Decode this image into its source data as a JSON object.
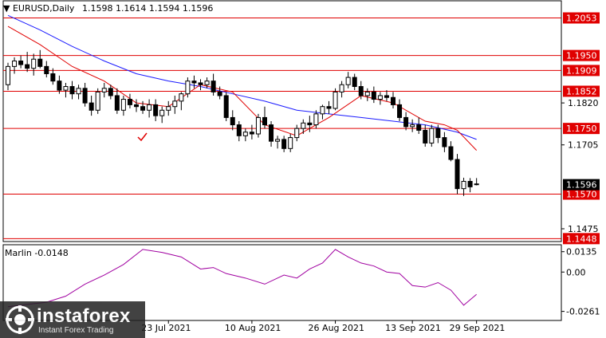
{
  "header": {
    "symbol_label": "EURUSD,Daily",
    "ohlc_label": "1.1598 1.1614 1.1594 1.1596",
    "menu_icon": "triangle-down-icon"
  },
  "indicator": {
    "label": "Marlin -0.0148",
    "axis_labels": [
      "0.0135",
      "0.00",
      "-0.0261"
    ]
  },
  "watermark": {
    "brand": "instaforex",
    "tagline": "Instant Forex Trading",
    "logo_icon": "instaforex-logo-icon"
  },
  "colors": {
    "candle_up": "#ffffff",
    "candle_down": "#000000",
    "ma_fast": "#e00000",
    "ma_slow": "#1a1aff",
    "level_line": "#e00000",
    "oscillator": "#a000a0",
    "current_price_box": "#000000"
  },
  "chart_data": {
    "type": "candlestick",
    "symbol": "EURUSD",
    "timeframe": "Daily",
    "current_price": 1.1596,
    "ylim": [
      1.144,
      1.21
    ],
    "price_axis_ticks": [
      1.182,
      1.1705,
      1.1475
    ],
    "x_tick_labels": [
      "23 Jul 2021",
      "10 Aug 2021",
      "26 Aug 2021",
      "13 Sep 2021",
      "29 Sep 2021"
    ],
    "horizontal_levels": [
      1.2053,
      1.195,
      1.1909,
      1.1852,
      1.175,
      1.157,
      1.1448
    ],
    "level_labels": [
      "1.2053",
      "1.1950",
      "1.1909",
      "1.1852",
      "1.1750",
      "1.1570",
      "1.1448",
      "1.1596"
    ],
    "annotation": "checkmark",
    "candles": [
      [
        1.187,
        1.193,
        1.1855,
        1.192
      ],
      [
        1.192,
        1.1945,
        1.19,
        1.1935
      ],
      [
        1.1935,
        1.195,
        1.1915,
        1.1925
      ],
      [
        1.1925,
        1.196,
        1.1905,
        1.1915
      ],
      [
        1.1915,
        1.1955,
        1.1895,
        1.194
      ],
      [
        1.194,
        1.1965,
        1.1915,
        1.192
      ],
      [
        1.192,
        1.1935,
        1.189,
        1.19
      ],
      [
        1.19,
        1.1915,
        1.187,
        1.188
      ],
      [
        1.188,
        1.1895,
        1.1845,
        1.1855
      ],
      [
        1.1855,
        1.1875,
        1.1835,
        1.1865
      ],
      [
        1.1865,
        1.188,
        1.183,
        1.1845
      ],
      [
        1.1845,
        1.187,
        1.183,
        1.186
      ],
      [
        1.186,
        1.1875,
        1.181,
        1.182
      ],
      [
        1.182,
        1.184,
        1.1785,
        1.18
      ],
      [
        1.18,
        1.186,
        1.179,
        1.185
      ],
      [
        1.185,
        1.1875,
        1.1835,
        1.186
      ],
      [
        1.186,
        1.187,
        1.183,
        1.184
      ],
      [
        1.184,
        1.186,
        1.179,
        1.18
      ],
      [
        1.18,
        1.184,
        1.1785,
        1.183
      ],
      [
        1.183,
        1.1845,
        1.1805,
        1.1815
      ],
      [
        1.1815,
        1.183,
        1.1795,
        1.181
      ],
      [
        1.181,
        1.1825,
        1.179,
        1.18
      ],
      [
        1.18,
        1.183,
        1.178,
        1.1815
      ],
      [
        1.1815,
        1.183,
        1.177,
        1.1785
      ],
      [
        1.1785,
        1.181,
        1.1765,
        1.18
      ],
      [
        1.18,
        1.1825,
        1.1785,
        1.181
      ],
      [
        1.181,
        1.184,
        1.179,
        1.1825
      ],
      [
        1.1825,
        1.185,
        1.18,
        1.1845
      ],
      [
        1.1845,
        1.189,
        1.1835,
        1.188
      ],
      [
        1.188,
        1.1895,
        1.186,
        1.1875
      ],
      [
        1.1875,
        1.1885,
        1.1855,
        1.187
      ],
      [
        1.187,
        1.189,
        1.186,
        1.188
      ],
      [
        1.188,
        1.19,
        1.184,
        1.185
      ],
      [
        1.185,
        1.1865,
        1.183,
        1.184
      ],
      [
        1.184,
        1.185,
        1.177,
        1.178
      ],
      [
        1.178,
        1.18,
        1.1745,
        1.176
      ],
      [
        1.176,
        1.177,
        1.1715,
        1.173
      ],
      [
        1.173,
        1.175,
        1.1715,
        1.174
      ],
      [
        1.174,
        1.176,
        1.172,
        1.1735
      ],
      [
        1.1735,
        1.179,
        1.1725,
        1.178
      ],
      [
        1.178,
        1.181,
        1.175,
        1.176
      ],
      [
        1.176,
        1.177,
        1.17,
        1.1715
      ],
      [
        1.1715,
        1.173,
        1.1695,
        1.172
      ],
      [
        1.172,
        1.173,
        1.1685,
        1.1695
      ],
      [
        1.1695,
        1.1735,
        1.1685,
        1.1725
      ],
      [
        1.1725,
        1.176,
        1.1715,
        1.175
      ],
      [
        1.175,
        1.1775,
        1.1735,
        1.1765
      ],
      [
        1.1765,
        1.1785,
        1.174,
        1.176
      ],
      [
        1.176,
        1.18,
        1.175,
        1.179
      ],
      [
        1.179,
        1.1815,
        1.1775,
        1.181
      ],
      [
        1.181,
        1.1825,
        1.179,
        1.1805
      ],
      [
        1.1805,
        1.186,
        1.18,
        1.185
      ],
      [
        1.185,
        1.188,
        1.1835,
        1.187
      ],
      [
        1.187,
        1.1905,
        1.186,
        1.189
      ],
      [
        1.189,
        1.19,
        1.1855,
        1.1865
      ],
      [
        1.1865,
        1.188,
        1.183,
        1.184
      ],
      [
        1.184,
        1.186,
        1.1825,
        1.185
      ],
      [
        1.185,
        1.1865,
        1.182,
        1.183
      ],
      [
        1.183,
        1.185,
        1.1815,
        1.184
      ],
      [
        1.184,
        1.1855,
        1.1825,
        1.1835
      ],
      [
        1.1835,
        1.185,
        1.1805,
        1.1815
      ],
      [
        1.1815,
        1.183,
        1.177,
        1.178
      ],
      [
        1.178,
        1.1795,
        1.1745,
        1.1755
      ],
      [
        1.1755,
        1.1775,
        1.174,
        1.176
      ],
      [
        1.176,
        1.178,
        1.1735,
        1.1745
      ],
      [
        1.1745,
        1.176,
        1.17,
        1.171
      ],
      [
        1.171,
        1.176,
        1.17,
        1.175
      ],
      [
        1.175,
        1.176,
        1.171,
        1.1725
      ],
      [
        1.1725,
        1.174,
        1.1685,
        1.17
      ],
      [
        1.17,
        1.1715,
        1.166,
        1.1665
      ],
      [
        1.1665,
        1.168,
        1.157,
        1.1585
      ],
      [
        1.1585,
        1.1615,
        1.1565,
        1.1605
      ],
      [
        1.1605,
        1.1614,
        1.1575,
        1.159
      ],
      [
        1.1598,
        1.1614,
        1.1594,
        1.1596
      ]
    ],
    "series": [
      {
        "type": "line",
        "x": [
          0,
          5,
          10,
          15,
          20,
          25,
          30,
          35,
          40,
          45,
          50,
          55,
          60,
          65,
          70,
          73
        ],
        "values": [
          1.206,
          1.202,
          1.1975,
          1.1935,
          1.19,
          1.188,
          1.1865,
          1.1845,
          1.1825,
          1.18,
          1.179,
          1.178,
          1.177,
          1.176,
          1.174,
          1.172
        ]
      },
      {
        "type": "line",
        "x": [
          0,
          5,
          10,
          15,
          20,
          25,
          30,
          35,
          40,
          45,
          50,
          55,
          60,
          65,
          68,
          70,
          73
        ],
        "values": [
          1.203,
          1.198,
          1.192,
          1.188,
          1.182,
          1.181,
          1.187,
          1.185,
          1.176,
          1.173,
          1.178,
          1.184,
          1.182,
          1.177,
          1.176,
          1.1745,
          1.169
        ]
      }
    ],
    "oscillator": {
      "name": "Marlin",
      "ylim": [
        -0.03,
        0.016
      ],
      "x": [
        0,
        3,
        6,
        9,
        12,
        15,
        18,
        21,
        24,
        27,
        30,
        32,
        34,
        37,
        40,
        43,
        45,
        47,
        49,
        51,
        53,
        55,
        57,
        59,
        61,
        63,
        65,
        67,
        69,
        71,
        73
      ],
      "values": [
        -0.023,
        -0.0215,
        -0.02,
        -0.016,
        -0.008,
        -0.002,
        0.005,
        0.015,
        0.013,
        0.01,
        0.002,
        0.003,
        -0.001,
        -0.004,
        -0.008,
        -0.002,
        -0.004,
        0.002,
        0.006,
        0.015,
        0.01,
        0.006,
        0.004,
        0.0,
        -0.001,
        -0.009,
        -0.01,
        -0.007,
        -0.012,
        -0.022,
        -0.0148
      ]
    }
  }
}
